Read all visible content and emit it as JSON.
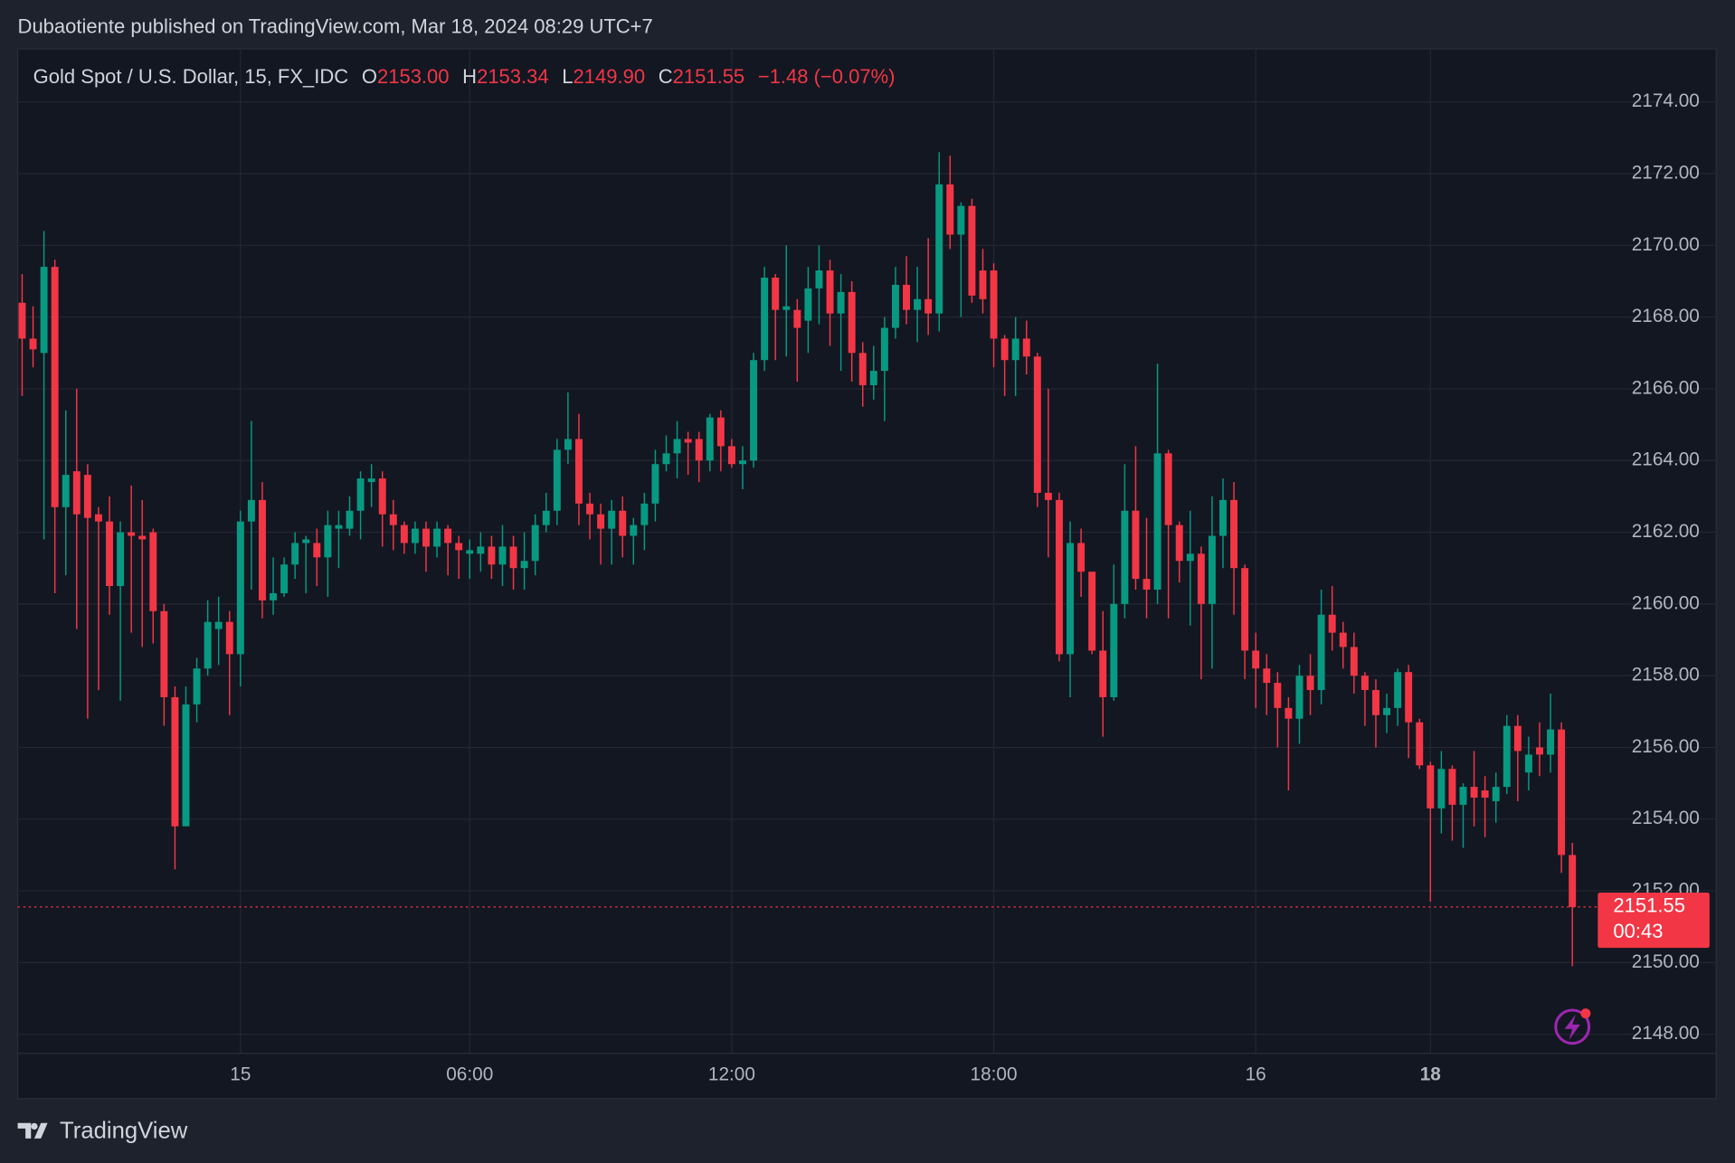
{
  "publisher_line": "Dubaotiente published on TradingView.com, Mar 18, 2024 08:29 UTC+7",
  "footer": {
    "brand": "TradingView"
  },
  "chart_data": {
    "type": "candlestick",
    "title": "Gold Spot / U.S. Dollar, 15, FX_IDC",
    "header": {
      "open_key": "O",
      "open": "2153.00",
      "high_key": "H",
      "high": "2153.34",
      "low_key": "L",
      "low": "2149.90",
      "close_key": "C",
      "close": "2151.55",
      "change": "−1.48 (−0.07%)"
    },
    "countdown": "00:43",
    "up_color": "#089981",
    "down_color": "#f23645",
    "grid": true,
    "ylim": [
      2147.47,
      2175.48
    ],
    "yticks": [
      {
        "value": 2148,
        "label": "2148.00"
      },
      {
        "value": 2150,
        "label": "2150.00"
      },
      {
        "value": 2152,
        "label": "2152.00"
      },
      {
        "value": 2154,
        "label": "2154.00"
      },
      {
        "value": 2156,
        "label": "2156.00"
      },
      {
        "value": 2158,
        "label": "2158.00"
      },
      {
        "value": 2160,
        "label": "2160.00"
      },
      {
        "value": 2162,
        "label": "2162.00"
      },
      {
        "value": 2164,
        "label": "2164.00"
      },
      {
        "value": 2166,
        "label": "2166.00"
      },
      {
        "value": 2168,
        "label": "2168.00"
      },
      {
        "value": 2170,
        "label": "2170.00"
      },
      {
        "value": 2172,
        "label": "2172.00"
      },
      {
        "value": 2174,
        "label": "2174.00"
      }
    ],
    "categories": [
      null,
      null,
      null,
      null,
      null,
      null,
      null,
      null,
      null,
      null,
      null,
      null,
      null,
      null,
      null,
      null,
      null,
      null,
      null,
      null,
      "15",
      null,
      null,
      null,
      null,
      null,
      null,
      null,
      null,
      null,
      null,
      null,
      null,
      null,
      null,
      null,
      null,
      null,
      null,
      null,
      null,
      "06:00",
      null,
      null,
      null,
      null,
      null,
      null,
      null,
      null,
      null,
      null,
      null,
      null,
      null,
      null,
      null,
      null,
      null,
      null,
      null,
      null,
      null,
      null,
      null,
      "12:00",
      null,
      null,
      null,
      null,
      null,
      null,
      null,
      null,
      null,
      null,
      null,
      null,
      null,
      null,
      null,
      null,
      null,
      null,
      null,
      null,
      null,
      null,
      null,
      "18:00",
      null,
      null,
      null,
      null,
      null,
      null,
      null,
      null,
      null,
      null,
      null,
      null,
      null,
      null,
      null,
      null,
      null,
      null,
      null,
      null,
      null,
      null,
      null,
      "16",
      null,
      null,
      null,
      null,
      null,
      null,
      null,
      null,
      null,
      null,
      null,
      null,
      null,
      null,
      null,
      "18",
      null,
      null,
      null,
      null,
      null,
      null,
      null,
      null,
      null,
      null,
      null,
      null,
      null
    ],
    "open": [
      2168.4,
      2167.4,
      2167.0,
      2169.4,
      2162.7,
      2163.7,
      2163.6,
      2162.5,
      2162.3,
      2160.5,
      2162.0,
      2161.9,
      2162.0,
      2159.8,
      2157.4,
      2153.8,
      2157.2,
      2158.2,
      2159.3,
      2159.5,
      2158.6,
      2162.3,
      2162.9,
      2160.1,
      2160.3,
      2161.1,
      2161.7,
      2161.7,
      2161.3,
      2162.1,
      2162.1,
      2162.6,
      2163.4,
      2163.5,
      2162.5,
      2162.2,
      2161.7,
      2162.1,
      2161.6,
      2162.1,
      2161.7,
      2161.4,
      2161.4,
      2161.6,
      2161.1,
      2161.6,
      2161.0,
      2161.2,
      2162.2,
      2162.6,
      2164.3,
      2164.6,
      2162.8,
      2162.5,
      2162.1,
      2162.6,
      2161.9,
      2162.2,
      2162.8,
      2163.9,
      2164.2,
      2164.6,
      2164.6,
      2164.0,
      2165.2,
      2164.4,
      2163.9,
      2164.0,
      2166.8,
      2169.1,
      2168.2,
      2168.2,
      2167.9,
      2168.8,
      2169.3,
      2168.1,
      2168.7,
      2167.0,
      2166.1,
      2166.5,
      2167.7,
      2168.9,
      2168.2,
      2168.5,
      2168.1,
      2171.7,
      2170.3,
      2171.1,
      2169.3,
      2169.3,
      2167.4,
      2166.8,
      2167.4,
      2166.9,
      2163.1,
      2162.9,
      2158.6,
      2161.7,
      2160.9,
      2158.7,
      2157.4,
      2160.0,
      2162.6,
      2160.7,
      2160.4,
      2164.2,
      2162.2,
      2161.2,
      2161.4,
      2160.0,
      2161.9,
      2162.9,
      2161.0,
      2158.7,
      2158.2,
      2157.8,
      2157.1,
      2156.8,
      2158.0,
      2157.6,
      2159.7,
      2159.2,
      2158.8,
      2158.0,
      2157.6,
      2156.9,
      2157.1,
      2158.1,
      2156.7,
      2155.5,
      2154.3,
      2155.4,
      2154.4,
      2154.9,
      2154.8,
      2154.5,
      2154.9,
      2156.6,
      2155.3,
      2156.0,
      2155.8,
      2156.5,
      2153.0
    ],
    "high": [
      2169.2,
      2168.3,
      2170.4,
      2169.6,
      2165.4,
      2166.0,
      2163.9,
      2162.7,
      2163.0,
      2162.3,
      2163.3,
      2162.9,
      2162.1,
      2160.0,
      2157.7,
      2157.7,
      2158.5,
      2160.1,
      2160.2,
      2159.8,
      2162.6,
      2165.1,
      2163.4,
      2161.3,
      2161.3,
      2162.0,
      2161.9,
      2162.1,
      2162.6,
      2162.6,
      2163.0,
      2163.7,
      2163.9,
      2163.7,
      2162.9,
      2162.3,
      2162.3,
      2162.3,
      2162.3,
      2162.2,
      2161.9,
      2161.8,
      2162.0,
      2161.9,
      2162.2,
      2161.9,
      2162.0,
      2162.5,
      2163.1,
      2164.6,
      2165.9,
      2165.3,
      2163.1,
      2162.8,
      2162.9,
      2163.0,
      2162.4,
      2163.1,
      2164.3,
      2164.7,
      2165.1,
      2164.8,
      2164.8,
      2165.3,
      2165.4,
      2164.6,
      2164.4,
      2167.0,
      2169.4,
      2169.2,
      2170.0,
      2168.5,
      2169.4,
      2170.0,
      2169.6,
      2169.2,
      2169.0,
      2167.3,
      2167.2,
      2168.0,
      2169.4,
      2169.7,
      2169.4,
      2170.2,
      2172.6,
      2172.5,
      2171.2,
      2171.3,
      2169.9,
      2169.5,
      2167.5,
      2168.0,
      2167.9,
      2167.0,
      2166.0,
      2163.1,
      2162.3,
      2162.1,
      2160.9,
      2159.8,
      2161.1,
      2163.9,
      2164.4,
      2162.4,
      2166.7,
      2164.3,
      2162.3,
      2162.6,
      2161.6,
      2163.0,
      2163.5,
      2163.4,
      2161.1,
      2159.2,
      2158.6,
      2158.1,
      2157.4,
      2158.3,
      2158.6,
      2160.4,
      2160.5,
      2159.5,
      2159.2,
      2158.1,
      2157.9,
      2157.5,
      2158.2,
      2158.3,
      2156.8,
      2155.6,
      2155.9,
      2155.5,
      2155.0,
      2155.9,
      2155.2,
      2155.3,
      2156.9,
      2156.9,
      2156.3,
      2156.7,
      2157.5,
      2156.7,
      2153.34
    ],
    "low": [
      2165.8,
      2166.6,
      2161.8,
      2160.3,
      2160.8,
      2159.3,
      2156.8,
      2157.6,
      2159.7,
      2157.3,
      2159.2,
      2158.8,
      2158.9,
      2156.6,
      2152.6,
      2153.8,
      2156.7,
      2158.0,
      2158.3,
      2156.9,
      2157.7,
      2160.4,
      2159.6,
      2159.7,
      2160.2,
      2160.7,
      2160.3,
      2160.5,
      2160.2,
      2161.0,
      2161.9,
      2161.8,
      2162.7,
      2161.6,
      2161.5,
      2161.4,
      2161.4,
      2160.9,
      2161.3,
      2160.8,
      2160.7,
      2160.7,
      2160.9,
      2160.7,
      2160.5,
      2160.4,
      2160.4,
      2160.8,
      2162.0,
      2162.2,
      2163.9,
      2162.2,
      2161.8,
      2161.1,
      2161.1,
      2161.3,
      2161.1,
      2161.5,
      2162.3,
      2163.7,
      2163.5,
      2163.6,
      2163.4,
      2163.7,
      2163.7,
      2163.8,
      2163.2,
      2163.8,
      2166.5,
      2166.8,
      2166.9,
      2166.2,
      2167.0,
      2167.8,
      2167.2,
      2166.5,
      2166.2,
      2165.5,
      2165.7,
      2165.1,
      2167.4,
      2167.8,
      2167.3,
      2167.5,
      2167.6,
      2169.9,
      2168.0,
      2168.4,
      2168.1,
      2166.6,
      2165.8,
      2165.8,
      2166.4,
      2162.7,
      2161.3,
      2158.4,
      2157.4,
      2160.2,
      2158.6,
      2156.3,
      2157.3,
      2159.6,
      2160.4,
      2159.6,
      2160.0,
      2159.6,
      2160.6,
      2159.4,
      2157.9,
      2158.2,
      2161.0,
      2159.7,
      2157.9,
      2157.1,
      2156.9,
      2156.0,
      2154.8,
      2156.1,
      2156.9,
      2157.2,
      2158.7,
      2158.2,
      2157.5,
      2156.6,
      2156.0,
      2156.4,
      2156.6,
      2155.7,
      2155.4,
      2151.7,
      2153.6,
      2153.4,
      2153.2,
      2153.8,
      2153.5,
      2153.9,
      2154.7,
      2154.5,
      2154.8,
      2155.2,
      2155.3,
      2152.5,
      2149.9
    ],
    "close": [
      2167.4,
      2167.1,
      2169.4,
      2162.7,
      2163.6,
      2162.5,
      2162.4,
      2162.3,
      2160.5,
      2162.0,
      2161.9,
      2161.8,
      2159.8,
      2157.4,
      2153.8,
      2157.2,
      2158.2,
      2159.5,
      2159.5,
      2158.6,
      2162.3,
      2162.9,
      2160.1,
      2160.3,
      2161.1,
      2161.7,
      2161.8,
      2161.3,
      2162.2,
      2162.2,
      2162.6,
      2163.5,
      2163.5,
      2162.5,
      2162.2,
      2161.7,
      2162.1,
      2161.6,
      2162.1,
      2161.7,
      2161.5,
      2161.5,
      2161.6,
      2161.1,
      2161.6,
      2161.0,
      2161.2,
      2162.2,
      2162.6,
      2164.3,
      2164.6,
      2162.8,
      2162.5,
      2162.1,
      2162.6,
      2161.9,
      2162.2,
      2162.8,
      2163.9,
      2164.2,
      2164.6,
      2164.5,
      2164.0,
      2165.2,
      2164.4,
      2163.9,
      2164.0,
      2166.8,
      2169.1,
      2168.2,
      2168.3,
      2167.7,
      2168.8,
      2169.3,
      2168.1,
      2168.7,
      2167.0,
      2166.1,
      2166.5,
      2167.7,
      2168.9,
      2168.2,
      2168.5,
      2168.1,
      2171.7,
      2170.3,
      2171.1,
      2168.6,
      2168.5,
      2167.4,
      2166.8,
      2167.4,
      2166.9,
      2163.1,
      2162.9,
      2158.6,
      2161.7,
      2160.9,
      2158.7,
      2157.4,
      2160.0,
      2162.6,
      2160.7,
      2160.4,
      2164.2,
      2162.2,
      2161.2,
      2161.4,
      2160.0,
      2161.9,
      2162.9,
      2161.0,
      2158.7,
      2158.2,
      2157.8,
      2157.1,
      2156.8,
      2158.0,
      2157.6,
      2159.7,
      2159.2,
      2158.8,
      2158.0,
      2157.6,
      2156.9,
      2157.1,
      2158.1,
      2156.7,
      2155.5,
      2154.3,
      2155.4,
      2154.4,
      2154.9,
      2154.6,
      2154.6,
      2154.9,
      2156.6,
      2155.9,
      2155.8,
      2155.8,
      2156.5,
      2153.0,
      2151.55
    ]
  }
}
